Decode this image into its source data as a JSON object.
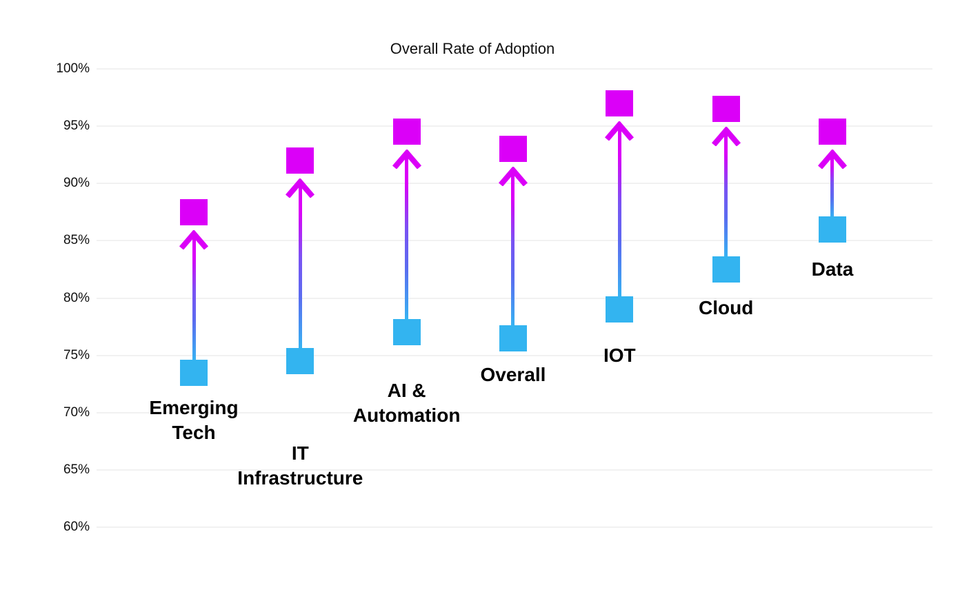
{
  "chart": {
    "title": "Overall Rate of Adoption"
  },
  "colors": {
    "low_marker": "#33B4F0",
    "high_marker": "#DB00F8",
    "arrow_gradient_bottom": "#35B5F2",
    "arrow_gradient_mid": "#7A52F3",
    "arrow_gradient_top": "#DB00F8",
    "gridline": "#f1f1f1",
    "text": "#111111"
  },
  "chart_data": {
    "type": "dumbbell",
    "title": "Overall Rate of Adoption",
    "categories": [
      "Emerging Tech",
      "IT Infrastructure",
      "AI & Automation",
      "Overall",
      "IOT",
      "Cloud",
      "Data"
    ],
    "category_label_lines": [
      [
        "Emerging",
        "Tech"
      ],
      [
        "IT",
        "Infrastructure"
      ],
      [
        "AI &",
        "Automation"
      ],
      [
        "Overall"
      ],
      [
        "IOT"
      ],
      [
        "Cloud"
      ],
      [
        "Data"
      ]
    ],
    "series": [
      {
        "name": "low",
        "values": [
          73.5,
          74.5,
          77.0,
          76.5,
          79.0,
          82.5,
          86.0
        ],
        "marker_color": "#33B4F0"
      },
      {
        "name": "high",
        "values": [
          87.5,
          92.0,
          94.5,
          93.0,
          97.0,
          96.5,
          94.5
        ],
        "marker_color": "#DB00F8"
      }
    ],
    "ylabel": "",
    "xlabel": "",
    "ylim": [
      60,
      100
    ],
    "ytick_step": 5,
    "ytick_labels": [
      "100%",
      "95%",
      "90%",
      "85%",
      "80%",
      "75%",
      "70%",
      "65%",
      "60%"
    ],
    "grid": "horizontal",
    "legend": "none",
    "annotation_style": "upward arrow from low value to high value per category"
  }
}
